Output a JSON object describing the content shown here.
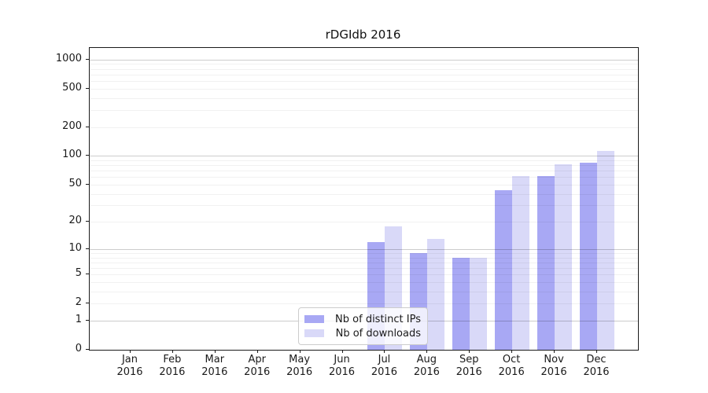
{
  "title": "rDGIdb 2016",
  "chart_data": {
    "type": "bar",
    "title": "rDGIdb 2016",
    "categories": [
      "Jan",
      "Feb",
      "Mar",
      "Apr",
      "May",
      "Jun",
      "Jul",
      "Aug",
      "Sep",
      "Oct",
      "Nov",
      "Dec"
    ],
    "x_tick_second_line": "2016",
    "series": [
      {
        "name": "Nb of distinct IPs",
        "color": "#a8a8f4",
        "values": [
          0,
          0,
          0,
          0,
          0,
          0,
          12,
          9,
          8,
          44,
          61,
          85
        ]
      },
      {
        "name": "Nb of downloads",
        "color": "#d9d9f8",
        "values": [
          0,
          0,
          0,
          0,
          0,
          0,
          18,
          13,
          8,
          62,
          81,
          112
        ]
      }
    ],
    "y_ticks": [
      0,
      1,
      2,
      5,
      10,
      20,
      50,
      100,
      200,
      500,
      1000
    ],
    "scale": "log10(value+1), linear-looking from 0",
    "ylim": [
      0,
      1316
    ],
    "xlabel": "",
    "ylabel": "",
    "grid": true,
    "legend_position": "lower center-left, inside plot"
  },
  "colors": {
    "background": "#ffffff",
    "spine": "#1a1a1a",
    "grid_major": "#c9c9c9",
    "grid_minor": "#efefef",
    "legend_border": "#cccccc"
  }
}
